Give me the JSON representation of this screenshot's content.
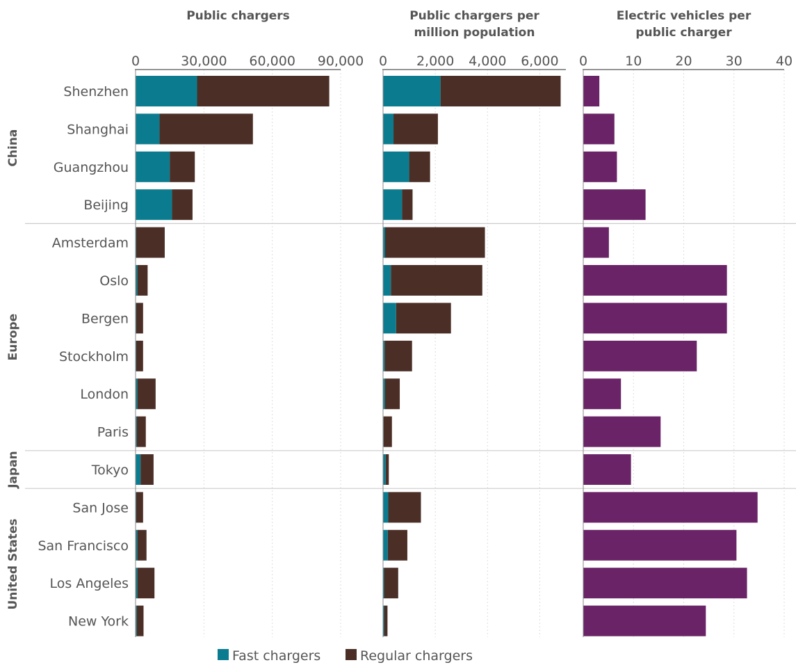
{
  "chart_data": {
    "type": "bar",
    "orientation": "horizontal",
    "stacked": true,
    "colors": {
      "fast": "#0b7c8f",
      "regular": "#4b2f27",
      "ev": "#692366",
      "text": "#555555",
      "grid": "#dddddd",
      "divider": "#cccccc"
    },
    "legend": {
      "placement": "bottom",
      "items": [
        {
          "key": "fast",
          "label": "Fast chargers"
        },
        {
          "key": "regular",
          "label": "Regular chargers"
        }
      ]
    },
    "groups": [
      {
        "name": "China",
        "cities": [
          "Shenzhen",
          "Shanghai",
          "Guangzhou",
          "Beijing"
        ]
      },
      {
        "name": "Europe",
        "cities": [
          "Amsterdam",
          "Oslo",
          "Bergen",
          "Stockholm",
          "London",
          "Paris"
        ]
      },
      {
        "name": "Japan",
        "cities": [
          "Tokyo"
        ]
      },
      {
        "name": "United States",
        "cities": [
          "San Jose",
          "San Francisco",
          "Los Angeles",
          "New York"
        ]
      }
    ],
    "panels": [
      {
        "id": "public-chargers",
        "title": [
          "Public chargers"
        ],
        "xlim": [
          0,
          90000
        ],
        "ticks": [
          0,
          30000,
          60000,
          90000
        ],
        "tick_labels": [
          "0",
          "30,000",
          "60,000",
          "90,000"
        ],
        "series": [
          {
            "name": "Fast chargers",
            "key": "fast",
            "values": [
              27000,
              10500,
              15000,
              16000,
              300,
              800,
              300,
              300,
              800,
              500,
              2200,
              300,
              800,
              800,
              500
            ]
          },
          {
            "name": "Regular chargers",
            "key": "regular",
            "values": [
              58000,
              41000,
              11000,
              9000,
              12500,
              4500,
              3000,
              3000,
              8000,
              4000,
              5700,
              3000,
              4000,
              7500,
              3000
            ]
          }
        ]
      },
      {
        "id": "chargers-per-million",
        "title": [
          "Public chargers per",
          "million population"
        ],
        "xlim": [
          0,
          7000
        ],
        "ticks": [
          0,
          2000,
          4000,
          6000
        ],
        "tick_labels": [
          "0",
          "2,000",
          "4,000",
          "6,000"
        ],
        "series": [
          {
            "name": "Fast chargers",
            "key": "fast",
            "values": [
              2200,
              400,
              1000,
              730,
              80,
              300,
              500,
              60,
              70,
              20,
              100,
              200,
              180,
              40,
              40
            ]
          },
          {
            "name": "Regular chargers",
            "key": "regular",
            "values": [
              4600,
              1700,
              800,
              400,
              3820,
              3500,
              2100,
              1050,
              570,
              320,
              120,
              1250,
              750,
              540,
              130
            ]
          }
        ]
      },
      {
        "id": "ev-per-charger",
        "title": [
          "Electric vehicles per",
          "public charger"
        ],
        "xlim": [
          0,
          40
        ],
        "ticks": [
          0,
          10,
          20,
          30,
          40
        ],
        "tick_labels": [
          "0",
          "10",
          "20",
          "30",
          "40"
        ],
        "series": [
          {
            "name": "",
            "key": "ev",
            "values": [
              3.2,
              6.2,
              6.7,
              12.4,
              5.1,
              28.6,
              28.6,
              22.6,
              7.5,
              15.4,
              9.5,
              34.7,
              30.5,
              32.6,
              24.4
            ]
          }
        ]
      }
    ]
  }
}
